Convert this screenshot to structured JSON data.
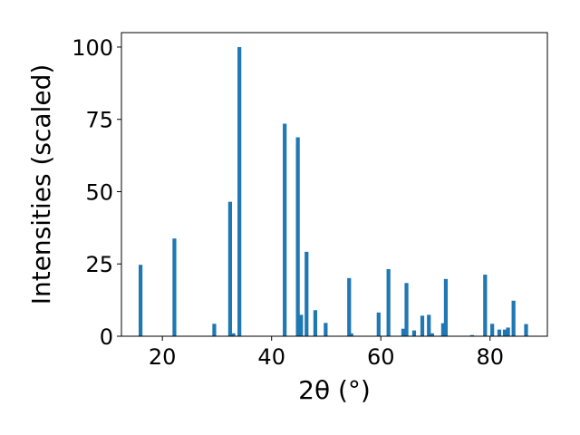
{
  "chart_data": {
    "type": "bar",
    "title": "",
    "xlabel": "2θ (°)",
    "ylabel": "Intensities (scaled)",
    "xlim": [
      12.5,
      90.5
    ],
    "ylim": [
      0,
      105
    ],
    "xticks": [
      20,
      40,
      60,
      80
    ],
    "yticks": [
      0,
      25,
      50,
      75,
      100
    ],
    "grid": false,
    "bar_width_deg": 0.7,
    "color": "#1f77b4",
    "series": [
      {
        "x": [
          16.0,
          22.2,
          29.5,
          32.4,
          33.0,
          34.1,
          42.4,
          44.8,
          45.4,
          46.4,
          48.0,
          49.9,
          54.2,
          54.6,
          59.6,
          61.4,
          64.1,
          64.7,
          66.1,
          67.6,
          68.8,
          69.4,
          71.4,
          71.9,
          76.7,
          79.1,
          80.4,
          81.7,
          82.7,
          83.3,
          84.3,
          86.6
        ],
        "y": [
          24.7,
          33.8,
          4.3,
          46.5,
          1.0,
          100.0,
          73.5,
          68.8,
          7.4,
          29.2,
          9.0,
          4.6,
          20.1,
          1.0,
          8.2,
          23.2,
          2.6,
          18.4,
          2.0,
          7.1,
          7.4,
          1.0,
          4.5,
          19.8,
          0.4,
          21.3,
          4.3,
          2.3,
          2.3,
          3.0,
          12.3,
          4.2
        ]
      }
    ]
  }
}
